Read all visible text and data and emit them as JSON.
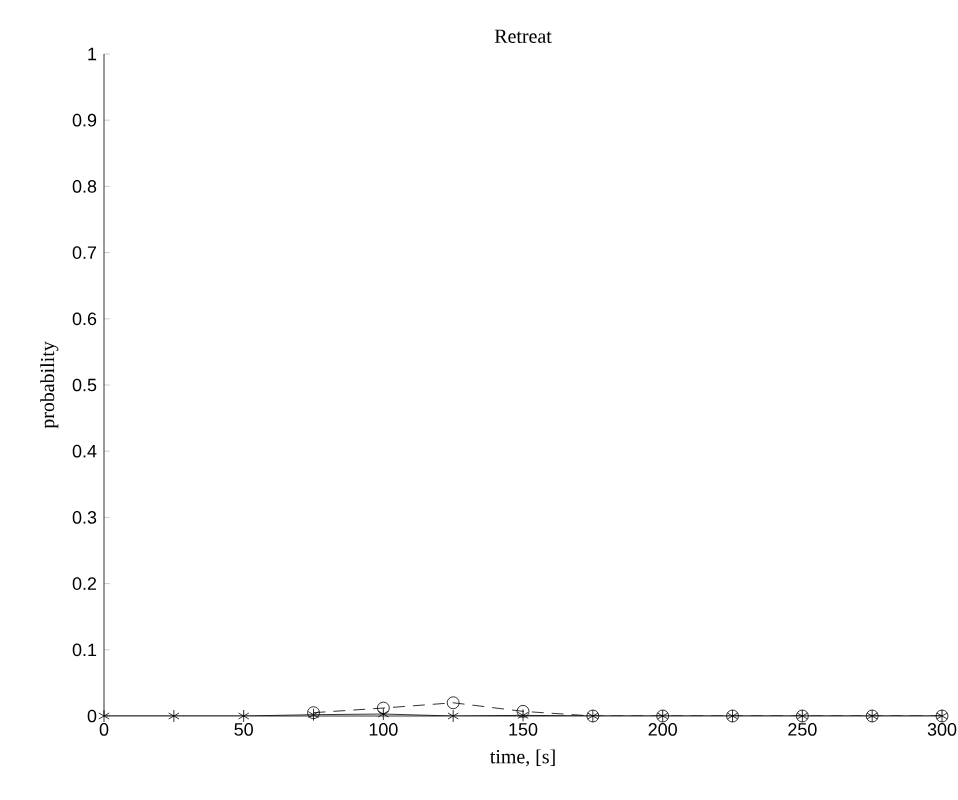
{
  "chart_data": {
    "type": "line",
    "title": "Retreat",
    "xlabel": "time, [s]",
    "ylabel": "probability",
    "x": [
      0,
      25,
      50,
      75,
      100,
      125,
      150,
      175,
      200,
      225,
      250,
      275,
      300
    ],
    "series": [
      {
        "color": "#000000",
        "marker": "circle",
        "line_style": "dashed",
        "x": [
          75,
          100,
          125,
          150,
          175,
          200,
          225,
          250,
          275,
          300
        ],
        "values": [
          0.005,
          0.012,
          0.02,
          0.007,
          0,
          0,
          0,
          0,
          0,
          0
        ]
      },
      {
        "color": "#000000",
        "marker": "cross",
        "line_style": "solid",
        "values": [
          0,
          0,
          0,
          0.002,
          0.003,
          0,
          0.001,
          0,
          0,
          0,
          0,
          0,
          0
        ]
      }
    ],
    "xlim": [
      0,
      300
    ],
    "ylim": [
      0,
      1
    ],
    "xticks": [
      0,
      50,
      100,
      150,
      200,
      250,
      300
    ],
    "yticks": [
      0,
      0.1,
      0.2,
      0.3,
      0.4,
      0.5,
      0.6,
      0.7,
      0.8,
      0.9,
      1
    ],
    "grid": false
  }
}
